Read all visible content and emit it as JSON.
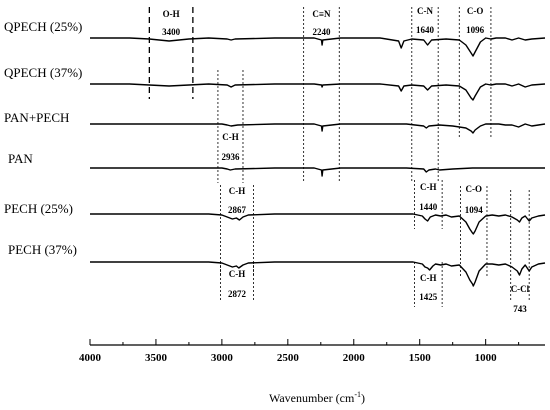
{
  "chart_data": {
    "type": "line",
    "title": "",
    "xlabel": "Wavenumber (cm",
    "xlabel_superscript": "-1",
    "xlabel_suffix": ")",
    "ylabel": "",
    "xlim": [
      4000,
      550
    ],
    "x_reversed": true,
    "grid": false,
    "x_ticks": [
      4000,
      3500,
      3000,
      2500,
      2000,
      1500,
      1000
    ],
    "x_tick_labels": [
      "4000",
      "3500",
      "3000",
      "2500",
      "2000",
      "1500",
      "1000"
    ],
    "series": [
      {
        "name": "QPECH (25%)",
        "x": [
          4000,
          3700,
          3550,
          3400,
          3250,
          3100,
          2960,
          2930,
          2900,
          2600,
          2300,
          2245,
          2240,
          2235,
          2100,
          1800,
          1660,
          1640,
          1620,
          1560,
          1470,
          1440,
          1410,
          1300,
          1200,
          1150,
          1110,
          1096,
          1080,
          1040,
          1000,
          960,
          920,
          850,
          800,
          750,
          700,
          650,
          550
        ],
        "y": [
          0,
          0,
          -1,
          -3,
          -1,
          0,
          -1,
          -2,
          -1,
          0,
          0,
          -2,
          -7,
          -2,
          0,
          0,
          -3,
          -10,
          -3,
          -1,
          -2,
          -7,
          -2,
          -1,
          -2,
          -7,
          -15,
          -18,
          -14,
          -4,
          0,
          -1,
          0,
          0,
          -2,
          0,
          -2,
          -1,
          0
        ]
      },
      {
        "name": "QPECH (37%)",
        "x": [
          4000,
          3700,
          3550,
          3400,
          3250,
          3100,
          2960,
          2930,
          2900,
          2600,
          2300,
          2245,
          2240,
          2235,
          2100,
          1800,
          1660,
          1640,
          1620,
          1560,
          1470,
          1440,
          1410,
          1300,
          1200,
          1150,
          1110,
          1096,
          1080,
          1040,
          1000,
          960,
          920,
          850,
          800,
          750,
          700,
          650,
          550
        ],
        "y": [
          0,
          0,
          -1,
          -2,
          -1,
          0,
          -1,
          -3,
          -1,
          0,
          0,
          -1,
          -3,
          -1,
          0,
          0,
          -2,
          -7,
          -2,
          -1,
          -2,
          -6,
          -2,
          -1,
          -2,
          -6,
          -14,
          -16,
          -12,
          -3,
          0,
          -1,
          0,
          0,
          -2,
          0,
          -3,
          -1,
          0
        ]
      },
      {
        "name": "PAN+PECH",
        "x": [
          4000,
          3500,
          3000,
          2960,
          2930,
          2880,
          2600,
          2300,
          2245,
          2240,
          2235,
          2100,
          1800,
          1600,
          1470,
          1450,
          1430,
          1350,
          1250,
          1150,
          1110,
          1096,
          1080,
          1040,
          1000,
          900,
          850,
          800,
          750,
          700,
          650,
          550
        ],
        "y": [
          0,
          0,
          0,
          -1,
          -2,
          -1,
          0,
          0,
          -2,
          -7,
          -2,
          0,
          0,
          0,
          -2,
          -4,
          -2,
          -1,
          -2,
          -4,
          -7,
          -9,
          -6,
          -2,
          0,
          0,
          -1,
          -1,
          -3,
          0,
          -2,
          0
        ]
      },
      {
        "name": "PAN",
        "x": [
          4000,
          3500,
          3000,
          2960,
          2936,
          2900,
          2600,
          2300,
          2245,
          2240,
          2235,
          2100,
          1800,
          1600,
          1470,
          1450,
          1430,
          1380,
          1350,
          1250,
          1100,
          1000,
          900,
          800,
          700,
          550
        ],
        "y": [
          0,
          0,
          0,
          -1,
          -2,
          -1,
          0,
          0,
          -2,
          -8,
          -2,
          0,
          0,
          0,
          -1,
          -4,
          -2,
          -1,
          -2,
          -1,
          0,
          0,
          0,
          0,
          0,
          0
        ]
      },
      {
        "name": "PECH (25%)",
        "x": [
          4000,
          3500,
          3100,
          3000,
          2960,
          2920,
          2890,
          2867,
          2840,
          2800,
          2600,
          2300,
          2000,
          1700,
          1550,
          1480,
          1460,
          1440,
          1420,
          1380,
          1340,
          1300,
          1260,
          1200,
          1150,
          1120,
          1100,
          1094,
          1080,
          1050,
          1000,
          950,
          900,
          850,
          800,
          760,
          743,
          725,
          700,
          670,
          650,
          600,
          550
        ],
        "y": [
          0,
          0,
          0,
          -1,
          -3,
          -5,
          -4,
          -6,
          -3,
          -1,
          0,
          0,
          0,
          0,
          0,
          -2,
          -5,
          -7,
          -3,
          -1,
          -2,
          -1,
          -3,
          -2,
          -8,
          -15,
          -19,
          -20,
          -17,
          -8,
          -2,
          -1,
          -2,
          -1,
          -3,
          -6,
          -8,
          -4,
          -2,
          -7,
          -4,
          -2,
          -1
        ]
      },
      {
        "name": "PECH (37%)",
        "x": [
          4000,
          3500,
          3100,
          3000,
          2960,
          2920,
          2890,
          2872,
          2840,
          2800,
          2600,
          2300,
          2000,
          1700,
          1550,
          1480,
          1460,
          1440,
          1425,
          1400,
          1380,
          1340,
          1300,
          1260,
          1200,
          1150,
          1120,
          1100,
          1094,
          1080,
          1050,
          1000,
          950,
          900,
          850,
          800,
          760,
          743,
          725,
          700,
          670,
          650,
          600,
          550
        ],
        "y": [
          0,
          0,
          0,
          -1,
          -3,
          -5,
          -4,
          -6,
          -3,
          -1,
          0,
          0,
          0,
          0,
          0,
          -2,
          -5,
          -6,
          -8,
          -4,
          -2,
          -3,
          -2,
          -4,
          -3,
          -10,
          -18,
          -22,
          -24,
          -20,
          -9,
          -2,
          -2,
          -3,
          -2,
          -5,
          -9,
          -13,
          -7,
          -3,
          -9,
          -5,
          -2,
          -1
        ]
      }
    ],
    "annotations": [
      {
        "bond": "O-H",
        "wavenumber": "3400",
        "x_left": 3550,
        "x_right": 3220,
        "lines_from_series": 0,
        "lines_to_series": 1
      },
      {
        "bond": "C≡N",
        "wavenumber": "2240",
        "x_left": 2380,
        "x_right": 2110,
        "lines_from_series": 0,
        "lines_to_series": 3
      },
      {
        "bond": "C-N",
        "wavenumber": "1640",
        "x_left": 1560,
        "x_right": 1360,
        "lines_from_series": 0,
        "lines_to_series": 3
      },
      {
        "bond": "C-O",
        "wavenumber": "1096",
        "x_left": 1200,
        "x_right": 960,
        "lines_from_series": 0,
        "lines_to_series": 2
      },
      {
        "bond": "C-H",
        "wavenumber": "2936",
        "x_left": 3030,
        "x_right": 2840,
        "lines_from_series": 1,
        "lines_to_series": 3
      },
      {
        "bond": "C-H",
        "wavenumber": "2867",
        "x_left": 3010,
        "x_right": 2760,
        "lines_from_series": 4,
        "lines_to_series": 5
      },
      {
        "bond": "C-H",
        "wavenumber": "2872",
        "x_left": 3010,
        "x_right": 2760,
        "lines_from_series": 5,
        "lines_to_series": 5
      },
      {
        "bond": "C-H",
        "wavenumber": "1440",
        "x_left": 1540,
        "x_right": 1330,
        "lines_from_series": 4,
        "lines_to_series": 4
      },
      {
        "bond": "C-O",
        "wavenumber": "1094",
        "x_left": 1190,
        "x_right": 990,
        "lines_from_series": 4,
        "lines_to_series": 5
      },
      {
        "bond": "C-H",
        "wavenumber": "1425",
        "x_left": 1540,
        "x_right": 1330,
        "lines_from_series": 5,
        "lines_to_series": 5
      },
      {
        "bond": "C-Cl",
        "wavenumber": "743",
        "x_left": 810,
        "x_right": 670,
        "lines_from_series": 4,
        "lines_to_series": 5
      }
    ]
  }
}
